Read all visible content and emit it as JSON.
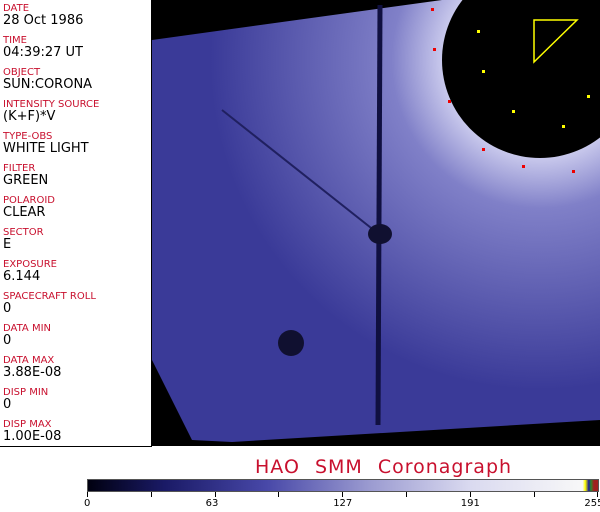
{
  "fields": [
    {
      "label": "DATE",
      "value": "28 Oct 1986"
    },
    {
      "label": "TIME",
      "value": "04:39:27 UT"
    },
    {
      "label": "OBJECT",
      "value": "SUN:CORONA"
    },
    {
      "label": "INTENSITY SOURCE",
      "value": "(K+F)*V"
    },
    {
      "label": "TYPE-OBS",
      "value": "WHITE LIGHT"
    },
    {
      "label": "FILTER",
      "value": "GREEN"
    },
    {
      "label": "POLAROID",
      "value": "CLEAR"
    },
    {
      "label": "SECTOR",
      "value": "E"
    },
    {
      "label": "EXPOSURE",
      "value": "6.144"
    },
    {
      "label": "SPACECRAFT ROLL",
      "value": "0"
    },
    {
      "label": "DATA MIN",
      "value": "0"
    },
    {
      "label": "DATA MAX",
      "value": "3.88E-08"
    },
    {
      "label": "DISP MIN",
      "value": "0"
    },
    {
      "label": "DISP MAX",
      "value": "1.00E-08"
    }
  ],
  "title": "HAO  SMM Coronagraph",
  "colorbar": {
    "ticks": [
      "0",
      "63",
      "127",
      "191",
      "255"
    ],
    "colors": {
      "low": "#000010",
      "mid": "#4848a8",
      "high": "#f8f8f8"
    }
  }
}
